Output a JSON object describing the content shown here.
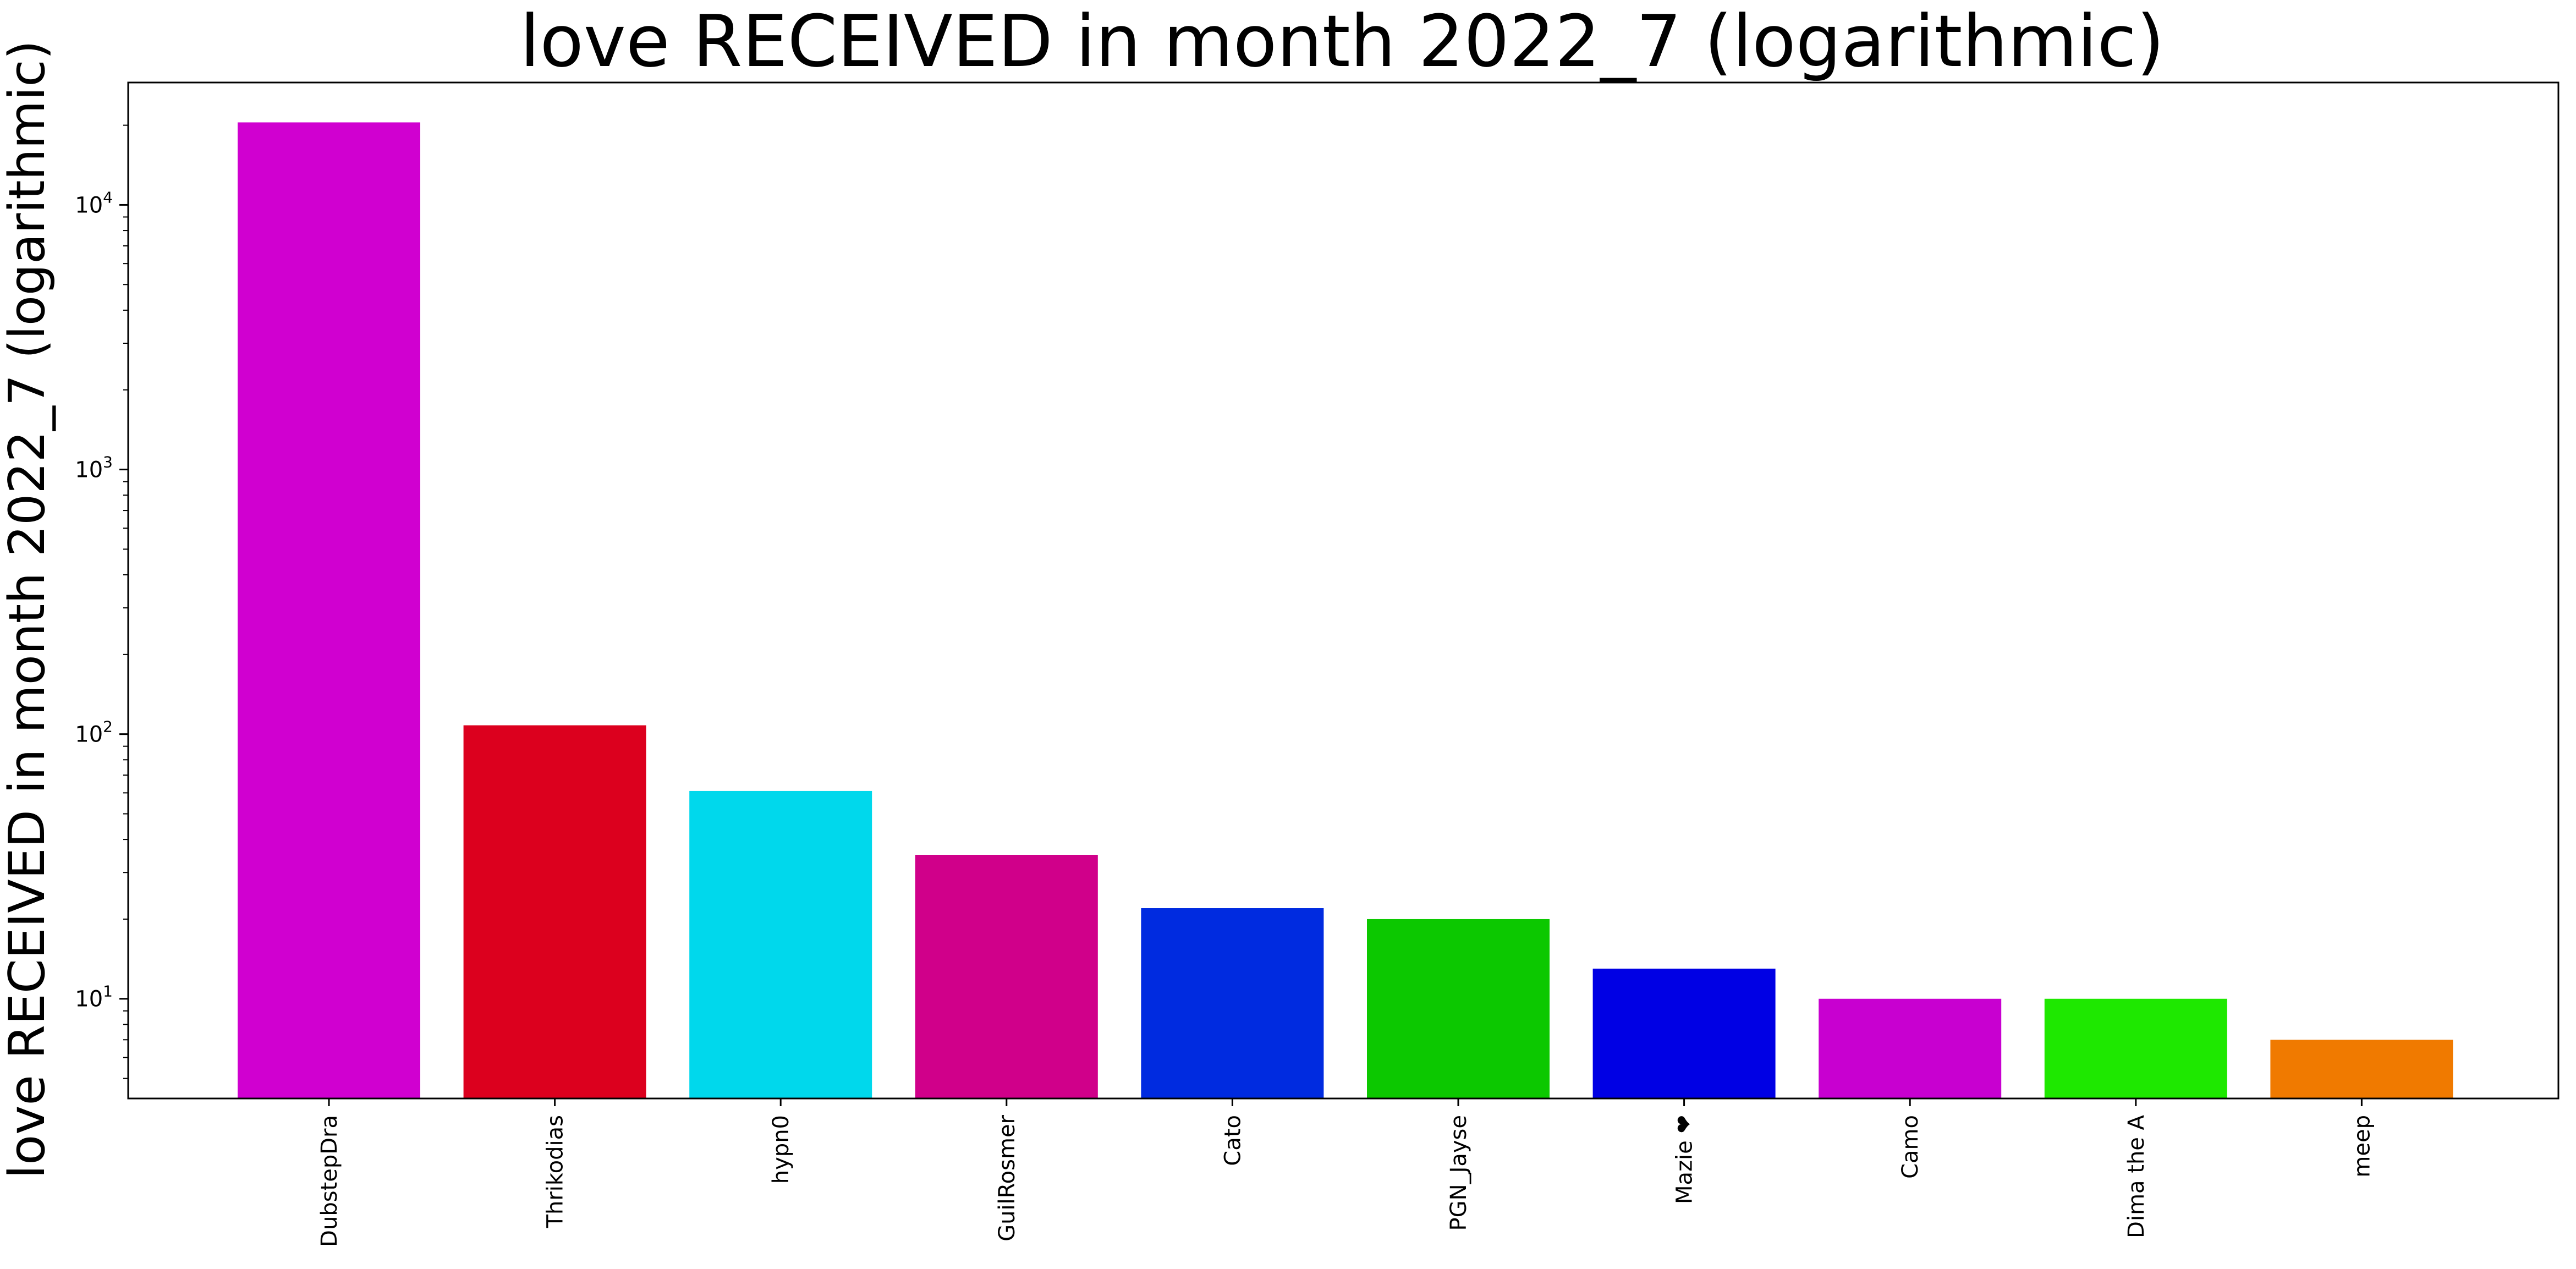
{
  "chart_data": {
    "type": "bar",
    "title": "love RECEIVED in month 2022_7 (logarithmic)",
    "xlabel": "",
    "ylabel": "love RECEIVED in month 2022_7 (logarithmic)",
    "yscale": "log",
    "ylim": [
      4.2,
      29000
    ],
    "grid": false,
    "legend": "none",
    "categories": [
      "DubstepDra",
      "Thrikodias",
      "hypn0",
      "GuilRosmer",
      "Cato",
      "PGN_Jayse",
      "Mazie ❤",
      "Camo",
      "Dima the A",
      "meep"
    ],
    "values": [
      20500,
      108,
      61,
      35,
      22,
      20,
      13,
      10,
      10,
      7
    ],
    "colors": [
      "#d000d0",
      "#dc001e",
      "#00d8ec",
      "#d0008a",
      "#002be0",
      "#0cc800",
      "#0000e4",
      "#c800d0",
      "#1ee800",
      "#f07a00"
    ],
    "yticks": [
      {
        "base": "10",
        "exp": "1",
        "value": 10
      },
      {
        "base": "10",
        "exp": "2",
        "value": 100
      },
      {
        "base": "10",
        "exp": "3",
        "value": 1000
      },
      {
        "base": "10",
        "exp": "4",
        "value": 10000
      }
    ]
  }
}
